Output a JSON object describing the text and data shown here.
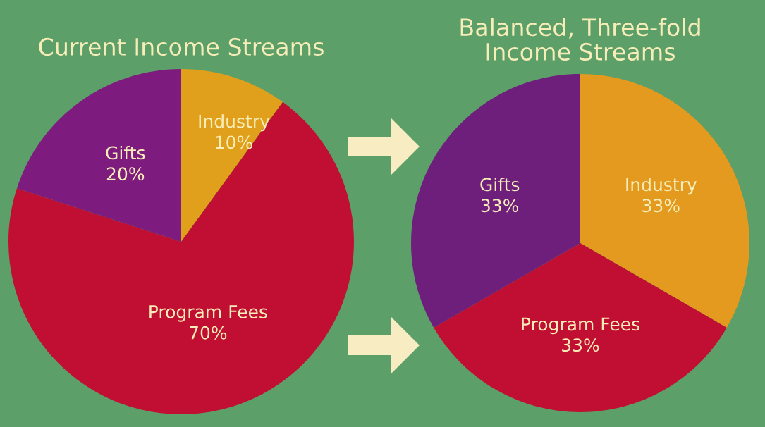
{
  "chart_data": [
    {
      "type": "pie",
      "title": "Current Income Streams",
      "categories": [
        "Industry",
        "Program Fees",
        "Gifts"
      ],
      "values": [
        10,
        70,
        20
      ],
      "value_labels": [
        "10%",
        "70%",
        "20%"
      ],
      "colors": [
        "#e0a01c",
        "#c00f32",
        "#7d1c7e"
      ]
    },
    {
      "type": "pie",
      "title": "Balanced, Three-fold\nIncome Streams",
      "categories": [
        "Industry",
        "Program Fees",
        "Gifts"
      ],
      "values": [
        33,
        33,
        33
      ],
      "value_labels": [
        "33%",
        "33%",
        "33%"
      ],
      "colors": [
        "#e39a1e",
        "#c00f32",
        "#6e1f7c"
      ]
    }
  ]
}
